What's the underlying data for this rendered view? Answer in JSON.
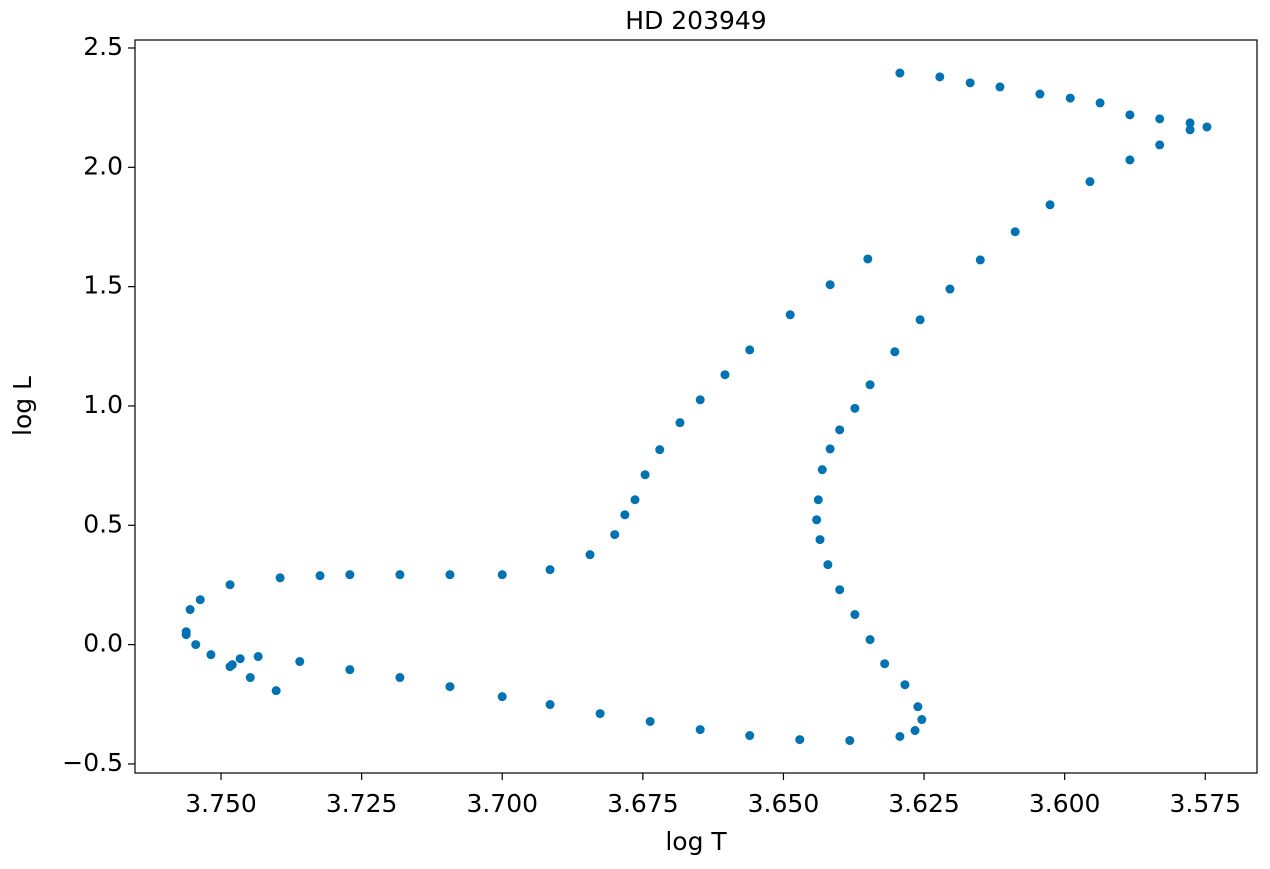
{
  "chart_data": {
    "type": "scatter",
    "title": "HD 203949",
    "x_label": "log T",
    "y_label": "log L",
    "xlim": [
      3.7653,
      3.5658
    ],
    "ylim": [
      -0.538,
      2.5335
    ],
    "xticks": [
      {
        "value": 3.75,
        "label": "3.750"
      },
      {
        "value": 3.725,
        "label": "3.725"
      },
      {
        "value": 3.7,
        "label": "3.700"
      },
      {
        "value": 3.675,
        "label": "3.675"
      },
      {
        "value": 3.65,
        "label": "3.650"
      },
      {
        "value": 3.625,
        "label": "3.625"
      },
      {
        "value": 3.6,
        "label": "3.600"
      },
      {
        "value": 3.575,
        "label": "3.575"
      }
    ],
    "yticks": [
      {
        "value": -0.5,
        "label": "−0.5"
      },
      {
        "value": 0,
        "label": "0.0"
      },
      {
        "value": 0.5,
        "label": "0.5"
      },
      {
        "value": 1,
        "label": "1.0"
      },
      {
        "value": 1.5,
        "label": "1.5"
      },
      {
        "value": 2,
        "label": "2.0"
      },
      {
        "value": 2.5,
        "label": "2.5"
      }
    ],
    "color": "#0173b2",
    "x": [
      3.7562,
      3.7545,
      3.7518,
      3.7484,
      3.7448,
      3.7402,
      3.748,
      3.7466,
      3.7434,
      3.736,
      3.7271,
      3.7182,
      3.7093,
      3.7,
      3.6915,
      3.6826,
      3.6737,
      3.6648,
      3.656,
      3.6471,
      3.6382,
      3.6293,
      3.6266,
      3.6254,
      3.6261,
      3.6284,
      3.632,
      3.6346,
      3.6373,
      3.64,
      3.6421,
      3.6435,
      3.6441,
      3.6438,
      3.6431,
      3.6417,
      3.64,
      3.6373,
      3.6346,
      3.6302,
      3.6257,
      3.6204,
      3.615,
      3.6088,
      3.6026,
      3.5955,
      3.5884,
      3.5831,
      3.5777,
      3.5747,
      3.5777,
      3.5831,
      3.5884,
      3.5937,
      3.599,
      3.6044,
      3.6115,
      3.6168,
      3.6222,
      3.6293,
      3.7562,
      3.7555,
      3.7537,
      3.7484,
      3.7395,
      3.7324,
      3.7271,
      3.7182,
      3.7093,
      3.7,
      3.6915,
      3.6844,
      3.68,
      3.6782,
      3.6764,
      3.6746,
      3.672,
      3.6684,
      3.6648,
      3.6604,
      3.656,
      3.6488,
      3.6417,
      3.635
    ],
    "y": [
      0.042,
      0.0,
      -0.042,
      -0.092,
      -0.138,
      -0.193,
      -0.084,
      -0.059,
      -0.05,
      -0.071,
      -0.105,
      -0.138,
      -0.176,
      -0.218,
      -0.251,
      -0.289,
      -0.322,
      -0.356,
      -0.381,
      -0.398,
      -0.402,
      -0.385,
      -0.36,
      -0.314,
      -0.26,
      -0.168,
      -0.08,
      0.021,
      0.126,
      0.23,
      0.335,
      0.44,
      0.523,
      0.607,
      0.733,
      0.82,
      0.9,
      0.99,
      1.089,
      1.227,
      1.361,
      1.49,
      1.612,
      1.73,
      1.843,
      1.94,
      2.031,
      2.094,
      2.157,
      2.169,
      2.186,
      2.203,
      2.22,
      2.27,
      2.29,
      2.307,
      2.337,
      2.354,
      2.379,
      2.395,
      0.054,
      0.147,
      0.188,
      0.251,
      0.28,
      0.289,
      0.293,
      0.293,
      0.293,
      0.293,
      0.314,
      0.377,
      0.461,
      0.544,
      0.607,
      0.712,
      0.817,
      0.93,
      1.026,
      1.131,
      1.235,
      1.382,
      1.508,
      1.616
    ]
  }
}
